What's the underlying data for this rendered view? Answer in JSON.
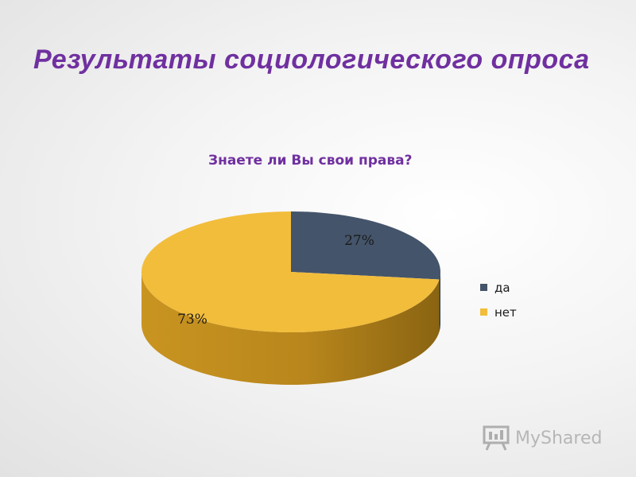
{
  "slide": {
    "title": "Результаты  социологического  опроса"
  },
  "colors": {
    "title": "#7030a0",
    "series_da": "#44546a",
    "series_net": "#f2bd3b"
  },
  "watermark": {
    "text": "MyShared",
    "icon": "presentation-board-icon"
  },
  "chart_data": {
    "type": "pie",
    "style": "3d",
    "title": "Знаете ли Вы свои права?",
    "categories": [
      "да",
      "нет"
    ],
    "values": [
      27,
      73
    ],
    "data_labels": [
      "27%",
      "73%"
    ],
    "colors": [
      "#44546a",
      "#f2bd3b"
    ],
    "legend": "right"
  }
}
